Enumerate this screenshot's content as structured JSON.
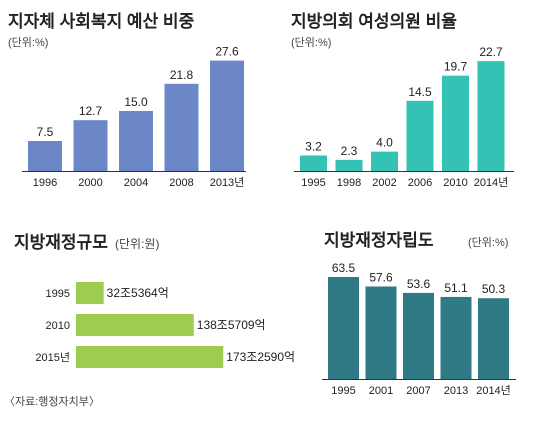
{
  "source_note": "〈자료:행정자치부〉",
  "colors": {
    "blue": "#6b87c8",
    "teal": "#33c2b4",
    "green": "#9ccc50",
    "dark_teal": "#2f7a84",
    "axis": "#333333",
    "text": "#222222"
  },
  "chart_data": [
    {
      "id": "welfare",
      "type": "bar",
      "title": "지자체 사회복지 예산 비중",
      "unit_label": "(단위:%)",
      "categories": [
        "1996",
        "2000",
        "2004",
        "2008",
        "2013년"
      ],
      "values": [
        7.5,
        12.7,
        15.0,
        21.8,
        27.6
      ],
      "value_labels": [
        "7.5",
        "12.7",
        "15.0",
        "21.8",
        "27.6"
      ],
      "ylim": [
        0,
        30
      ],
      "grid": false
    },
    {
      "id": "women_council",
      "type": "bar",
      "title": "지방의회 여성의원 비율",
      "unit_label": "(단위:%)",
      "categories": [
        "1995",
        "1998",
        "2002",
        "2006",
        "2010",
        "2014년"
      ],
      "values": [
        3.2,
        2.3,
        4.0,
        14.5,
        19.7,
        22.7
      ],
      "value_labels": [
        "3.2",
        "2.3",
        "4.0",
        "14.5",
        "19.7",
        "22.7"
      ],
      "ylim": [
        0,
        25
      ],
      "grid": false
    },
    {
      "id": "fiscal_scale",
      "type": "bar",
      "orientation": "horizontal",
      "title": "지방재정규모",
      "unit_label": "(단위:원)",
      "categories": [
        "1995",
        "2010",
        "2015년"
      ],
      "values": [
        32.5364,
        138.5709,
        173.259
      ],
      "value_labels": [
        "32조5364억",
        "138조5709억",
        "173조2590억"
      ],
      "xlim": [
        0,
        180
      ],
      "grid": false
    },
    {
      "id": "fiscal_independence",
      "type": "bar",
      "title": "지방재정자립도",
      "unit_label": "(단위:%)",
      "categories": [
        "1995",
        "2001",
        "2007",
        "2013",
        "2014년"
      ],
      "values": [
        63.5,
        57.6,
        53.6,
        51.1,
        50.3
      ],
      "value_labels": [
        "63.5",
        "57.6",
        "53.6",
        "51.1",
        "50.3"
      ],
      "ylim": [
        0,
        66
      ],
      "grid": false
    }
  ]
}
